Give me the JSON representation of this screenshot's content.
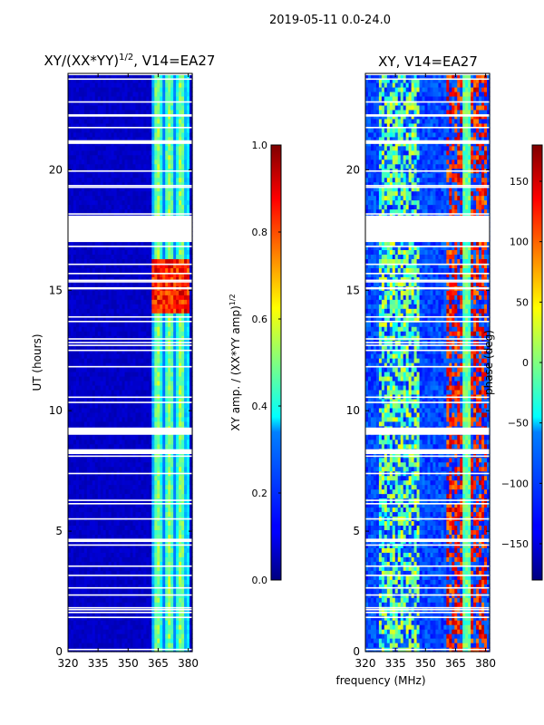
{
  "figure": {
    "suptitle": "2019-05-11 0.0-24.0",
    "xlabel": "frequency (MHz)"
  },
  "chart_data": [
    {
      "type": "heatmap",
      "panel": "left",
      "title_main": "XY/(XX*YY)",
      "title_sup": "1/2",
      "title_tail": ", V14=EA27",
      "xlabel": "",
      "ylabel": "UT (hours)",
      "xlim": [
        320,
        382
      ],
      "ylim": [
        0,
        24
      ],
      "xticks": [
        320,
        335,
        350,
        365,
        380
      ],
      "yticks": [
        0,
        5,
        10,
        15,
        20
      ],
      "colormap": "jet",
      "value_range": [
        0.0,
        1.0
      ],
      "colorbar_label_main": "XY amp. / (XX*YY amp)",
      "colorbar_label_sup": "1/2",
      "colorbar_ticks": [
        "0.0",
        "0.2",
        "0.4",
        "0.6",
        "0.8",
        "1.0"
      ],
      "colorbar_tick_values": [
        0.0,
        0.2,
        0.4,
        0.6,
        0.8,
        1.0
      ],
      "flagged_time_ranges_hours": [
        [
          17.0,
          18.1
        ],
        [
          9.0,
          9.3
        ],
        [
          8.2,
          8.4
        ]
      ],
      "description": "Low amplitude (~0.05) below 362 MHz; striped higher values (0.3-0.6) between 362 and 380 MHz; hot spots (~0.9) near 14-16 UT around 363-378 MHz."
    },
    {
      "type": "heatmap",
      "panel": "right",
      "title": "XY, V14=EA27",
      "xlabel": "frequency (MHz)",
      "ylabel": "",
      "xlim": [
        320,
        382
      ],
      "ylim": [
        0,
        24
      ],
      "xticks": [
        320,
        335,
        350,
        365,
        380
      ],
      "yticks": [
        0,
        5,
        10,
        15,
        20
      ],
      "colormap": "jet",
      "value_range": [
        -180,
        180
      ],
      "colorbar_label": "phase (deg)",
      "colorbar_ticks": [
        "−150",
        "−100",
        "−50",
        "0",
        "50",
        "100",
        "150"
      ],
      "colorbar_tick_values": [
        -150,
        -100,
        -50,
        0,
        50,
        100,
        150
      ],
      "flagged_time_ranges_hours": [
        [
          17.0,
          18.1
        ],
        [
          9.0,
          9.3
        ],
        [
          8.2,
          8.4
        ]
      ],
      "description": "Noisy phase; mostly near -100 deg with bands near 0 deg around 330-345 MHz and near +150 deg around 360-380 MHz."
    }
  ]
}
